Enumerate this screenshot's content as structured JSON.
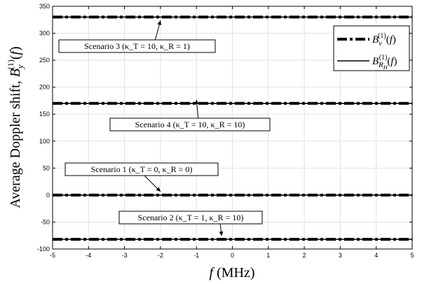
{
  "chart_data": {
    "type": "line",
    "xlabel": "f (MHz)",
    "ylabel": "Average Doppler shift, B_y^(1)(f)",
    "xlim": [
      -5,
      5
    ],
    "ylim": [
      -100,
      350
    ],
    "grid": true,
    "x_ticks": [
      -5,
      -4,
      -3,
      -2,
      -1,
      0,
      1,
      2,
      3,
      4,
      5
    ],
    "y_ticks": [
      -100,
      -50,
      0,
      50,
      100,
      150,
      200,
      250,
      300,
      350
    ],
    "x": [
      -5,
      5
    ],
    "series": [
      {
        "name": "B_ν^(1)(f) — Scenario 1",
        "style": "dashdot",
        "y": [
          0,
          0
        ]
      },
      {
        "name": "B_R_H^(1)(f) — Scenario 1",
        "style": "solid",
        "y": [
          0,
          0
        ]
      },
      {
        "name": "B_ν^(1)(f) — Scenario 2",
        "style": "dashdot",
        "y": [
          -82,
          -82
        ]
      },
      {
        "name": "B_R_H^(1)(f) — Scenario 2",
        "style": "solid",
        "y": [
          -82,
          -82
        ]
      },
      {
        "name": "B_ν^(1)(f) — Scenario 3",
        "style": "dashdot",
        "y": [
          330,
          330
        ]
      },
      {
        "name": "B_R_H^(1)(f) — Scenario 3",
        "style": "solid",
        "y": [
          330,
          330
        ]
      },
      {
        "name": "B_ν^(1)(f) — Scenario 4",
        "style": "dashdot",
        "y": [
          170,
          170
        ]
      },
      {
        "name": "B_R_H^(1)(f) — Scenario 4",
        "style": "solid",
        "y": [
          170,
          170
        ]
      }
    ],
    "legend": {
      "placement": "top-right",
      "entries": [
        {
          "label": "B_ν^(1)(f)",
          "style": "dashdot"
        },
        {
          "label": "B_R_H^(1)(f)",
          "style": "solid"
        }
      ]
    },
    "annotations": [
      {
        "text": "Scenario 3 (κ_T = 10, κ_R = 1)",
        "arrow_x": -2.0,
        "arrow_y": 330
      },
      {
        "text": "Scenario 4 (κ_T = 10, κ_R = 10)",
        "arrow_x": -1.0,
        "arrow_y": 170
      },
      {
        "text": "Scenario 1 (κ_T = 0, κ_R = 0)",
        "arrow_x": -2.0,
        "arrow_y": 0
      },
      {
        "text": "Scenario 2 (κ_T = 1, κ_R = 10)",
        "arrow_x": -0.3,
        "arrow_y": -82
      }
    ]
  }
}
